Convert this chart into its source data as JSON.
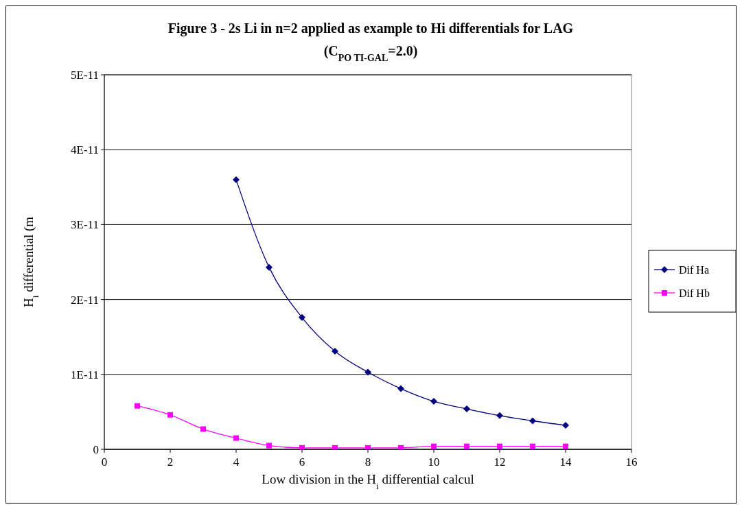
{
  "chart_data": {
    "type": "line",
    "title": "Figure 3 - 2s Li in n=2 applied as example to Hi differentials for LAG",
    "subtitle": "(C$_{PO TI-GAL}$=2.0)",
    "xlabel": "Low division in the H$_{i}$ differential calcul",
    "ylabel": "H$_{i}$ differential (m",
    "x": [
      1,
      2,
      3,
      4,
      5,
      6,
      7,
      8,
      9,
      10,
      11,
      12,
      13,
      14
    ],
    "series": [
      {
        "name": "Dif Ha",
        "color": "#000080",
        "marker": "diamond",
        "values": [
          null,
          null,
          null,
          3.6e-11,
          2.43e-11,
          1.76e-11,
          1.31e-11,
          1.03e-11,
          8.1e-12,
          6.4e-12,
          5.4e-12,
          4.5e-12,
          3.8e-12,
          3.2e-12
        ]
      },
      {
        "name": "Dif Hb",
        "color": "#ff00ff",
        "marker": "square",
        "values": [
          5.8e-12,
          4.6e-12,
          2.7e-12,
          1.5e-12,
          5e-13,
          2e-13,
          2e-13,
          2e-13,
          2e-13,
          4e-13,
          4e-13,
          4e-13,
          4e-13,
          4e-13
        ]
      }
    ],
    "xlim": [
      0,
      16
    ],
    "xticks": [
      0,
      2,
      4,
      6,
      8,
      10,
      12,
      14,
      16
    ],
    "ylim": [
      0,
      5e-11
    ],
    "yticks": [
      0,
      {
        "value": 1e-11,
        "label": "1E-11"
      },
      {
        "value": 2e-11,
        "label": "2E-11"
      },
      {
        "value": 3e-11,
        "label": "3E-11"
      },
      {
        "value": 4e-11,
        "label": "4E-11"
      },
      {
        "value": 5e-11,
        "label": "5E-11"
      }
    ],
    "grid": "y",
    "legend": "right",
    "line_style": "solid"
  }
}
